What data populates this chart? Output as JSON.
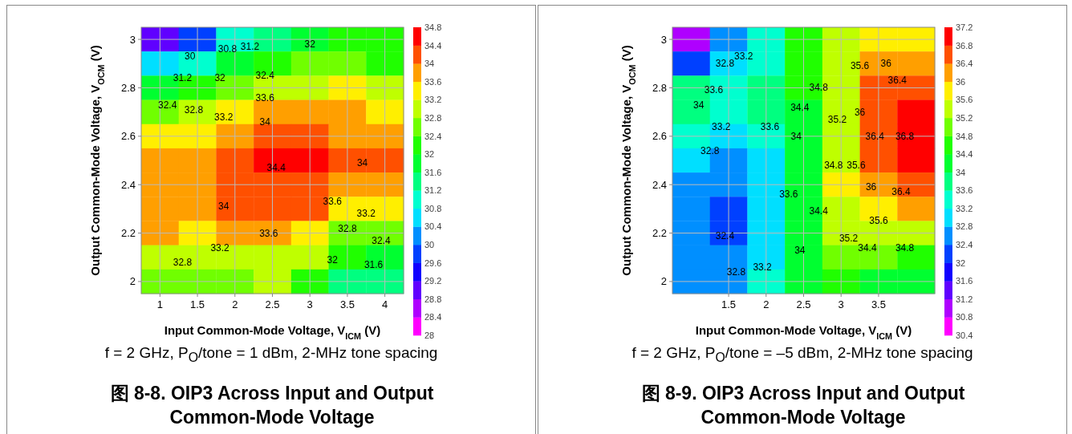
{
  "chart_data": [
    {
      "type": "heatmap",
      "title": "图 8-8. OIP3 Across Input and Output Common-Mode Voltage",
      "xlabel": "Input Common-Mode Voltage, V$_{ICM}$ (V)",
      "ylabel": "Output Common-Mode Voltage, V$_{OCM}$ (V)",
      "categories": [
        "1",
        "1.5",
        "2",
        "2.5",
        "3",
        "3.5",
        "4"
      ],
      "y_categories": [
        "3",
        null,
        "2.8",
        null,
        "2.6",
        null,
        "2.4",
        null,
        "2.2",
        null,
        "2"
      ],
      "grid": true,
      "clim": [
        28,
        34.8
      ],
      "cticks": [
        28,
        28.4,
        28.8,
        29.2,
        29.6,
        30,
        30.4,
        30.8,
        31.2,
        31.6,
        32,
        32.4,
        32.8,
        33.2,
        33.6,
        34,
        34.4,
        34.8
      ],
      "cells": [
        [
          29.0,
          29.9,
          30.9,
          31.5,
          31.9,
          32.1,
          32.1
        ],
        [
          30.5,
          31.0,
          31.6,
          32.2,
          32.4,
          32.5,
          32.3
        ],
        [
          31.9,
          32.2,
          32.6,
          32.9,
          33.1,
          33.2,
          33.0
        ],
        [
          32.6,
          32.8,
          33.2,
          33.7,
          33.75,
          33.7,
          33.5
        ],
        [
          33.2,
          33.4,
          33.95,
          34.1,
          34.2,
          33.9,
          33.9
        ],
        [
          33.7,
          33.7,
          34.1,
          34.45,
          34.5,
          34.0,
          34.1
        ],
        [
          33.8,
          33.8,
          34.1,
          34.2,
          34.2,
          33.6,
          33.7
        ],
        [
          33.7,
          33.8,
          34.05,
          34.05,
          34.0,
          33.2,
          33.3
        ],
        [
          33.6,
          33.5,
          33.6,
          33.6,
          33.5,
          32.5,
          32.6
        ],
        [
          33.0,
          32.9,
          33.1,
          33.1,
          32.9,
          32.0,
          31.8
        ],
        [
          32.5,
          32.4,
          32.7,
          32.8,
          32.3,
          31.4,
          31.2
        ]
      ],
      "annotations": [
        "30",
        "30.8",
        "31.2",
        "32",
        "31.2",
        "32",
        "32.4",
        "32.4",
        "32.8",
        "33.2",
        "33.6",
        "34",
        "34.4",
        "34",
        "34",
        "33.6",
        "33.2",
        "33.6",
        "33.2",
        "32.8",
        "32.4",
        "32.8",
        "32",
        "31.6"
      ],
      "subtitle": "f = 2 GHz, P$_{O}$/tone = 1 dBm, 2-MHz tone spacing"
    },
    {
      "type": "heatmap",
      "title": "图 8-9. OIP3 Across Input and Output Common-Mode Voltage",
      "xlabel": "Input Common-Mode Voltage, V$_{ICM}$ (V)",
      "ylabel": "Output Common-Mode Voltage, V$_{OCM}$ (V)",
      "categories": [
        null,
        "1.5",
        "2",
        "2.5",
        "3",
        "3.5",
        null
      ],
      "y_categories": [
        "3",
        null,
        "2.8",
        null,
        "2.6",
        null,
        "2.4",
        null,
        "2.2",
        null,
        "2"
      ],
      "grid": true,
      "clim": [
        30.4,
        37.2
      ],
      "cticks": [
        30.4,
        30.8,
        31.2,
        31.6,
        32,
        32.4,
        32.8,
        33.2,
        33.6,
        34,
        34.4,
        34.8,
        35.2,
        35.6,
        36,
        36.4,
        36.8,
        37.2
      ],
      "cells": [
        [
          30.9,
          32.5,
          33.3,
          34.5,
          35.4,
          35.9,
          35.7
        ],
        [
          32.2,
          33.0,
          33.5,
          34.6,
          35.4,
          36.3,
          36.1
        ],
        [
          33.8,
          33.5,
          33.7,
          34.5,
          35.3,
          36.6,
          36.6
        ],
        [
          33.9,
          33.5,
          33.6,
          34.3,
          35.2,
          36.7,
          37.0
        ],
        [
          33.4,
          33.1,
          33.3,
          34.1,
          35.3,
          36.5,
          37.0
        ],
        [
          32.8,
          32.7,
          33.1,
          34.05,
          35.5,
          36.4,
          36.9
        ],
        [
          32.6,
          32.6,
          33.0,
          34.1,
          35.6,
          36.2,
          36.5
        ],
        [
          32.5,
          32.35,
          33.0,
          34.2,
          35.5,
          35.8,
          36.0
        ],
        [
          32.5,
          32.35,
          33.0,
          34.2,
          35.2,
          35.5,
          35.4
        ],
        [
          32.6,
          32.6,
          33.1,
          34.2,
          34.9,
          34.8,
          34.6
        ],
        [
          32.6,
          32.7,
          33.2,
          34.2,
          34.6,
          34.2,
          34.0
        ]
      ],
      "annotations": [
        "32.8",
        "33.2",
        "33.6",
        "34",
        "33.2",
        "32.8",
        "32.4",
        "32.8",
        "33.2",
        "33.6",
        "33.6",
        "34",
        "34.4",
        "34.8",
        "35.2",
        "34.8",
        "34.4",
        "34",
        "35.6",
        "36",
        "36.4",
        "36",
        "36.4",
        "35.6",
        "36",
        "36.4",
        "36.8",
        "35.6",
        "35.2",
        "34.4",
        "34.8"
      ],
      "subtitle": "f = 2 GHz, P$_{O}$/tone = –5 dBm, 2-MHz tone spacing"
    }
  ]
}
